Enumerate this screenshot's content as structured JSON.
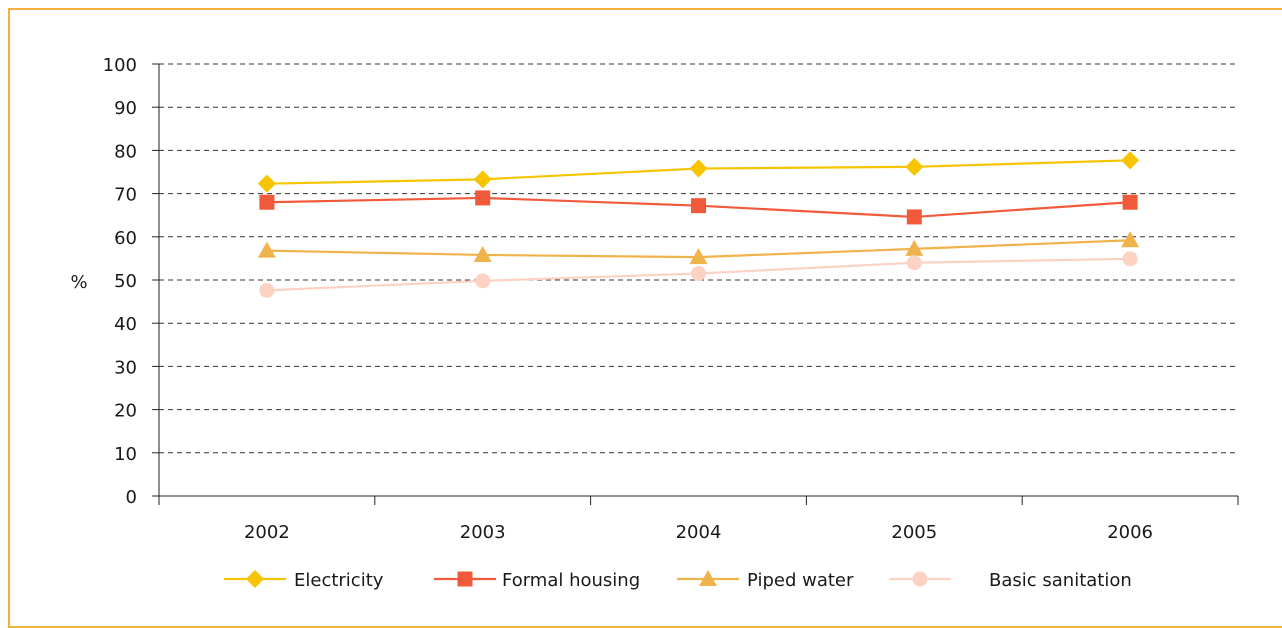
{
  "chart_data": {
    "type": "line",
    "title": "",
    "xlabel": "",
    "ylabel": "%",
    "x": [
      "2002",
      "2003",
      "2004",
      "2005",
      "2006"
    ],
    "ylim": [
      0,
      100
    ],
    "yticks": [
      0,
      10,
      20,
      30,
      40,
      50,
      60,
      70,
      80,
      90,
      100
    ],
    "grid": true,
    "legend": "bottom",
    "series": [
      {
        "name": "Electricity",
        "values": [
          72.3,
          73.3,
          75.8,
          76.2,
          77.7
        ],
        "color": "#f7c400",
        "marker": "diamond"
      },
      {
        "name": "Formal housing",
        "values": [
          68.0,
          69.0,
          67.2,
          64.6,
          68.0
        ],
        "color": "#f05a3a",
        "marker": "square"
      },
      {
        "name": "Piped water",
        "values": [
          56.8,
          55.8,
          55.3,
          57.2,
          59.2
        ],
        "color": "#f0b24a",
        "marker": "triangle"
      },
      {
        "name": "Basic sanitation",
        "values": [
          47.6,
          49.8,
          51.5,
          54.0,
          54.9
        ],
        "color": "#fcd2c2",
        "marker": "circle"
      }
    ]
  }
}
